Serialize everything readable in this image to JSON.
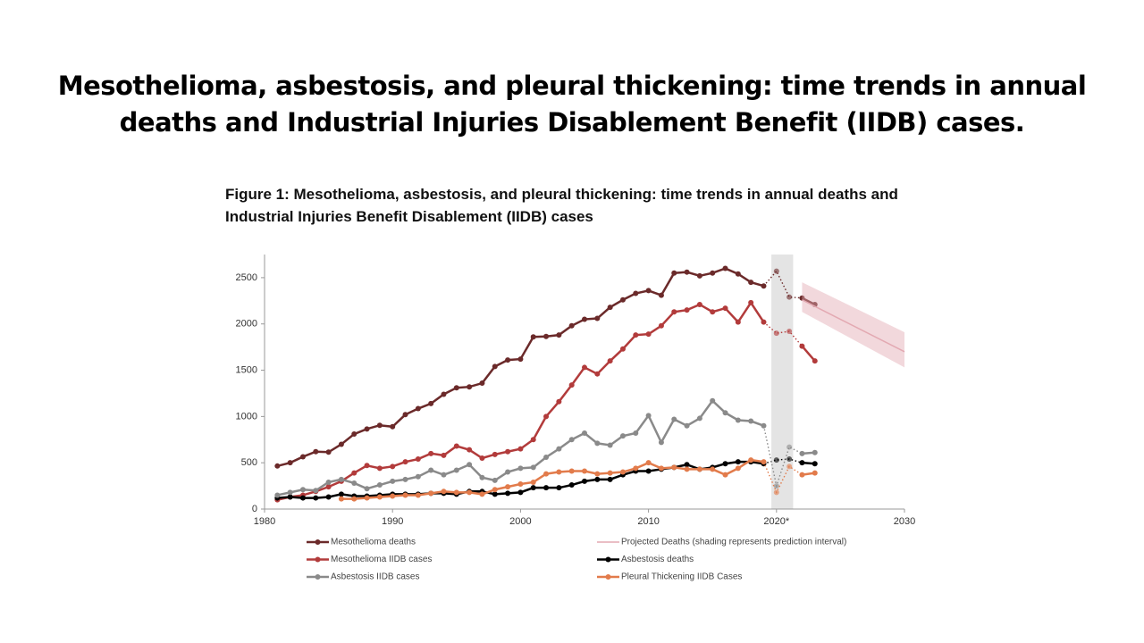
{
  "slide": {
    "title": "Mesothelioma, asbestosis, and pleural thickening: time trends in annual deaths and Industrial Injuries Disablement Benefit (IIDB) cases."
  },
  "chart_data": {
    "type": "line",
    "title": "Figure 1: Mesothelioma, asbestosis, and pleural thickening: time trends in annual deaths and Industrial Injuries Benefit Disablement (IIDB) cases",
    "x": [
      1981,
      1982,
      1983,
      1984,
      1985,
      1986,
      1987,
      1988,
      1989,
      1990,
      1991,
      1992,
      1993,
      1994,
      1995,
      1996,
      1997,
      1998,
      1999,
      2000,
      2001,
      2002,
      2003,
      2004,
      2005,
      2006,
      2007,
      2008,
      2009,
      2010,
      2011,
      2012,
      2013,
      2014,
      2015,
      2016,
      2017,
      2018,
      2019,
      2020,
      2021,
      2022,
      2023
    ],
    "xlim": [
      1980,
      2030
    ],
    "xticks": [
      1980,
      1990,
      2000,
      2010,
      {
        "value": 2020,
        "label": "2020*"
      },
      2030
    ],
    "ylim": [
      0,
      2750
    ],
    "yticks": [
      0,
      500,
      1000,
      1500,
      2000,
      2500
    ],
    "shaded_x": [
      2019.6,
      2021.3
    ],
    "shade_color": "#e4e4e4",
    "series": [
      {
        "name": "Mesothelioma deaths",
        "color": "#6b2a2a",
        "values": [
          465,
          500,
          565,
          620,
          615,
          700,
          810,
          865,
          905,
          890,
          1020,
          1085,
          1140,
          1240,
          1310,
          1320,
          1360,
          1540,
          1610,
          1620,
          1860,
          1865,
          1880,
          1980,
          2050,
          2060,
          2180,
          2260,
          2330,
          2360,
          2310,
          2550,
          2560,
          2520,
          2550,
          2600,
          2540,
          2450,
          2410,
          2570,
          2290,
          2280,
          2210
        ]
      },
      {
        "name": "Projected Deaths (shading represents prediction interval)",
        "color": "#e3a9b2",
        "x": [
          2022,
          2030
        ],
        "values": [
          2260,
          1700
        ],
        "lower": [
          2130,
          1530
        ],
        "upper": [
          2450,
          1910
        ]
      },
      {
        "name": "Mesothelioma IIDB cases",
        "color": "#b23b3b",
        "values": [
          100,
          130,
          150,
          190,
          240,
          300,
          390,
          470,
          440,
          460,
          510,
          540,
          600,
          580,
          680,
          640,
          550,
          590,
          620,
          650,
          750,
          1000,
          1160,
          1340,
          1530,
          1460,
          1600,
          1730,
          1880,
          1890,
          1980,
          2130,
          2150,
          2210,
          2130,
          2170,
          2020,
          2230,
          2020,
          1900,
          1920,
          1760,
          1600
        ]
      },
      {
        "name": "Asbestosis deaths",
        "color": "#000000",
        "values": [
          120,
          130,
          120,
          120,
          130,
          160,
          140,
          140,
          150,
          160,
          160,
          160,
          170,
          170,
          160,
          190,
          190,
          160,
          170,
          180,
          230,
          230,
          230,
          260,
          300,
          320,
          320,
          370,
          410,
          410,
          430,
          450,
          480,
          430,
          450,
          490,
          510,
          510,
          490,
          530,
          540,
          500,
          490
        ]
      },
      {
        "name": "Asbestosis IIDB cases",
        "color": "#8a8a8a",
        "values": [
          150,
          180,
          210,
          200,
          290,
          320,
          280,
          220,
          260,
          300,
          320,
          350,
          420,
          370,
          420,
          480,
          340,
          310,
          400,
          440,
          450,
          560,
          650,
          750,
          820,
          710,
          690,
          790,
          820,
          1010,
          720,
          970,
          900,
          980,
          1170,
          1040,
          960,
          950,
          900,
          250,
          670,
          600,
          610
        ]
      },
      {
        "name": "Pleural Thickening IIDB Cases",
        "color": "#e27b4b",
        "values": [
          null,
          null,
          null,
          null,
          null,
          110,
          110,
          120,
          130,
          140,
          150,
          150,
          170,
          190,
          180,
          180,
          160,
          210,
          240,
          270,
          290,
          380,
          400,
          410,
          410,
          380,
          390,
          400,
          440,
          500,
          440,
          450,
          430,
          430,
          430,
          370,
          440,
          530,
          510,
          180,
          460,
          370,
          390
        ]
      }
    ]
  }
}
